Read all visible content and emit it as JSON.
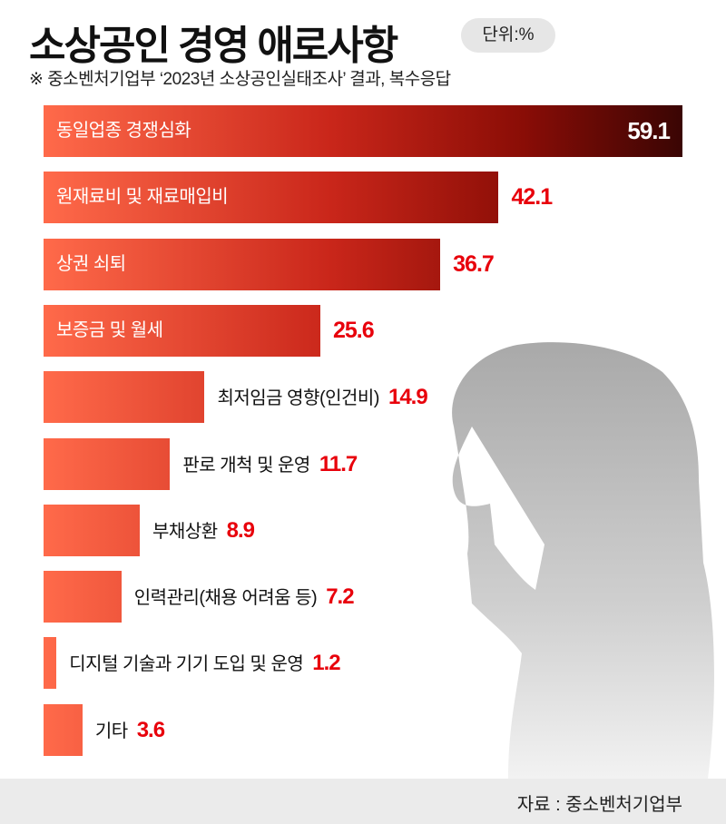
{
  "header": {
    "title": "소상공인 경영 애로사항",
    "unit": "단위:%",
    "subtitle": "※ 중소벤처기업부 ‘2023년 소상공인실태조사’ 결과, 복수응답"
  },
  "chart_data": {
    "type": "bar",
    "orientation": "horizontal",
    "title": "소상공인 경영 애로사항",
    "unit": "%",
    "categories": [
      "동일업종 경쟁심화",
      "원재료비 및 재료매입비",
      "상권 쇠퇴",
      "보증금 및 월세",
      "최저임금 영향(인건비)",
      "판로 개척 및 운영",
      "부채상환",
      "인력관리(채용 어려움 등)",
      "디지털 기술과 기기 도입 및 운영",
      "기타"
    ],
    "values": [
      59.1,
      42.1,
      36.7,
      25.6,
      14.9,
      11.7,
      8.9,
      7.2,
      1.2,
      3.6
    ],
    "value_labels": [
      "59.1",
      "42.1",
      "36.7",
      "25.6",
      "14.9",
      "11.7",
      "8.9",
      "7.2",
      "1.2",
      "3.6"
    ],
    "xlim": [
      0,
      59.1
    ],
    "grid": false,
    "colors": {
      "bar_start": "#ff6a4a",
      "bar_mid": "#c9261a",
      "bar_end": "#3a0504",
      "value": "#e8000b"
    }
  },
  "footer": {
    "source": "자료 : 중소벤처기업부"
  }
}
